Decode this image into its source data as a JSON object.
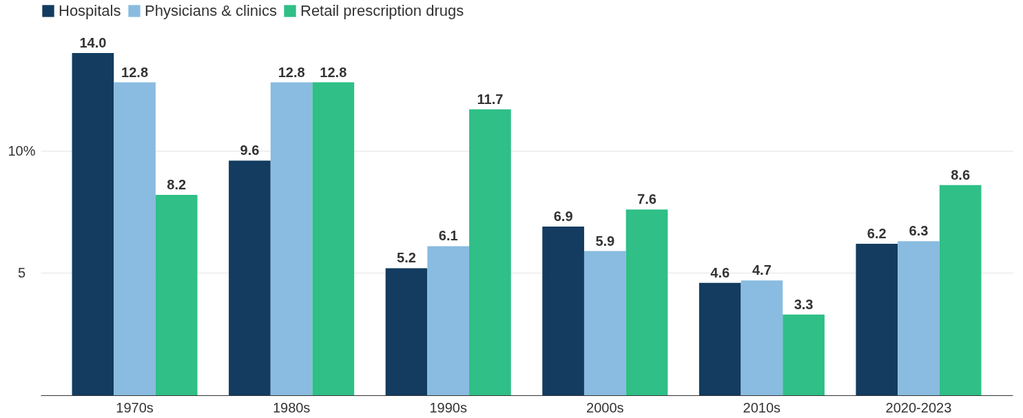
{
  "chart_data": {
    "type": "bar",
    "categories": [
      "1970s",
      "1980s",
      "1990s",
      "2000s",
      "2010s",
      "2020-2023"
    ],
    "series": [
      {
        "name": "Hospitals",
        "color": "#133c60",
        "values": [
          14.0,
          9.6,
          5.2,
          6.9,
          4.6,
          6.2
        ],
        "value_labels": [
          "14.0",
          "9.6",
          "5.2",
          "6.9",
          "4.6",
          "6.2"
        ]
      },
      {
        "name": "Physicians & clinics",
        "color": "#89bce0",
        "values": [
          12.8,
          12.8,
          6.1,
          5.9,
          4.7,
          6.3
        ],
        "value_labels": [
          "12.8",
          "12.8",
          "6.1",
          "5.9",
          "4.7",
          "6.3"
        ]
      },
      {
        "name": "Retail prescription drugs",
        "color": "#2fbf87",
        "values": [
          8.2,
          12.8,
          11.7,
          7.6,
          3.3,
          8.6
        ],
        "value_labels": [
          "8.2",
          "12.8",
          "11.7",
          "7.6",
          "3.3",
          "8.6"
        ]
      }
    ],
    "ylim": [
      0,
      14
    ],
    "yticks": [
      {
        "value": 5,
        "label": "5"
      },
      {
        "value": 10,
        "label": "10%"
      }
    ],
    "grid": "y",
    "legend": "top left"
  }
}
